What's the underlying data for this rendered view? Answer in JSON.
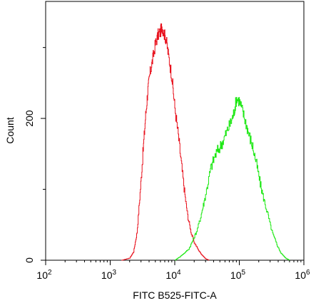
{
  "chart_data": {
    "type": "area",
    "xlabel": "FITC B525-FITC-A",
    "ylabel": "Count",
    "x_scale": "log",
    "xlim": [
      100,
      1000000
    ],
    "ylim": [
      0,
      365
    ],
    "x_ticks": [
      {
        "value": 100,
        "base": "10",
        "exp": "2"
      },
      {
        "value": 1000,
        "base": "10",
        "exp": "3"
      },
      {
        "value": 10000,
        "base": "10",
        "exp": "4"
      },
      {
        "value": 100000,
        "base": "10",
        "exp": "5"
      },
      {
        "value": 1000000,
        "base": "10",
        "exp": "6"
      }
    ],
    "y_ticks": [
      {
        "value": 0,
        "label": "0"
      },
      {
        "value": 200,
        "label": "200"
      }
    ],
    "y_minor_ticks": [
      100,
      300
    ],
    "grid": false,
    "series": [
      {
        "color": "#e8101c",
        "x": [
          1500,
          2000,
          2300,
          2600,
          2900,
          3200,
          3500,
          3800,
          4100,
          4500,
          5000,
          5500,
          6000,
          6300,
          6800,
          7300,
          8000,
          9000,
          10000,
          11500,
          13000,
          14500,
          16000,
          18000,
          20000,
          23000,
          26000,
          30000,
          34000
        ],
        "y": [
          0,
          3,
          12,
          40,
          95,
          150,
          200,
          238,
          262,
          282,
          305,
          318,
          322,
          330,
          320,
          312,
          288,
          258,
          215,
          170,
          125,
          88,
          60,
          38,
          25,
          15,
          8,
          2,
          0
        ]
      },
      {
        "color": "#1ee815",
        "x": [
          10000,
          12000,
          14000,
          16500,
          19000,
          22000,
          25000,
          28000,
          32000,
          36000,
          42000,
          50000,
          58000,
          66000,
          75000,
          83000,
          90000,
          100000,
          112000,
          125000,
          140000,
          160000,
          185000,
          210000,
          240000,
          280000,
          320000,
          380000,
          440000,
          520000,
          600000
        ],
        "y": [
          0,
          5,
          10,
          16,
          28,
          42,
          60,
          80,
          105,
          130,
          148,
          160,
          172,
          185,
          196,
          210,
          228,
          225,
          210,
          195,
          178,
          160,
          135,
          108,
          85,
          62,
          40,
          22,
          10,
          3,
          0
        ]
      }
    ]
  }
}
